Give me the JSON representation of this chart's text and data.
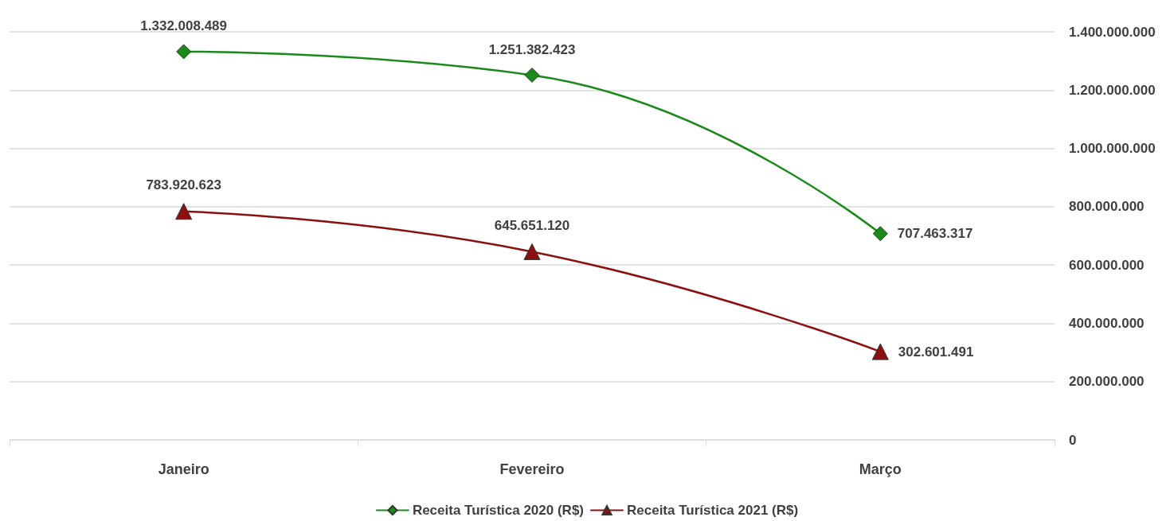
{
  "chart_data": {
    "type": "line",
    "categories": [
      "Janeiro",
      "Fevereiro",
      "Março"
    ],
    "series": [
      {
        "name": "Receita Turística 2020 (R$)",
        "color": "#1a8a1a",
        "marker": "diamond",
        "values": [
          1332008489,
          1251382423,
          707463317
        ],
        "value_labels": [
          "1.332.008.489",
          "1.251.382.423",
          "707.463.317"
        ]
      },
      {
        "name": "Receita Turística 2021 (R$)",
        "color": "#8b1010",
        "marker": "triangle",
        "values": [
          783920623,
          645651120,
          302601491
        ],
        "value_labels": [
          "783.920.623",
          "645.651.120",
          "302.601.491"
        ]
      }
    ],
    "ylim": [
      0,
      1400000000
    ],
    "yticks": [
      0,
      {
        "value": 200000000,
        "label": "200.000.000"
      },
      {
        "value": 400000000,
        "label": "400.000.000"
      },
      {
        "value": 600000000,
        "label": "600.000.000"
      },
      {
        "value": 800000000,
        "label": "800.000.000"
      },
      {
        "value": 1000000000,
        "label": "1.000.000.000"
      },
      {
        "value": 1200000000,
        "label": "1.200.000.000"
      },
      {
        "value": 1400000000,
        "label": "1.400.000.000"
      }
    ],
    "grid": "y",
    "legend": "bottom",
    "line_style": "solid"
  }
}
